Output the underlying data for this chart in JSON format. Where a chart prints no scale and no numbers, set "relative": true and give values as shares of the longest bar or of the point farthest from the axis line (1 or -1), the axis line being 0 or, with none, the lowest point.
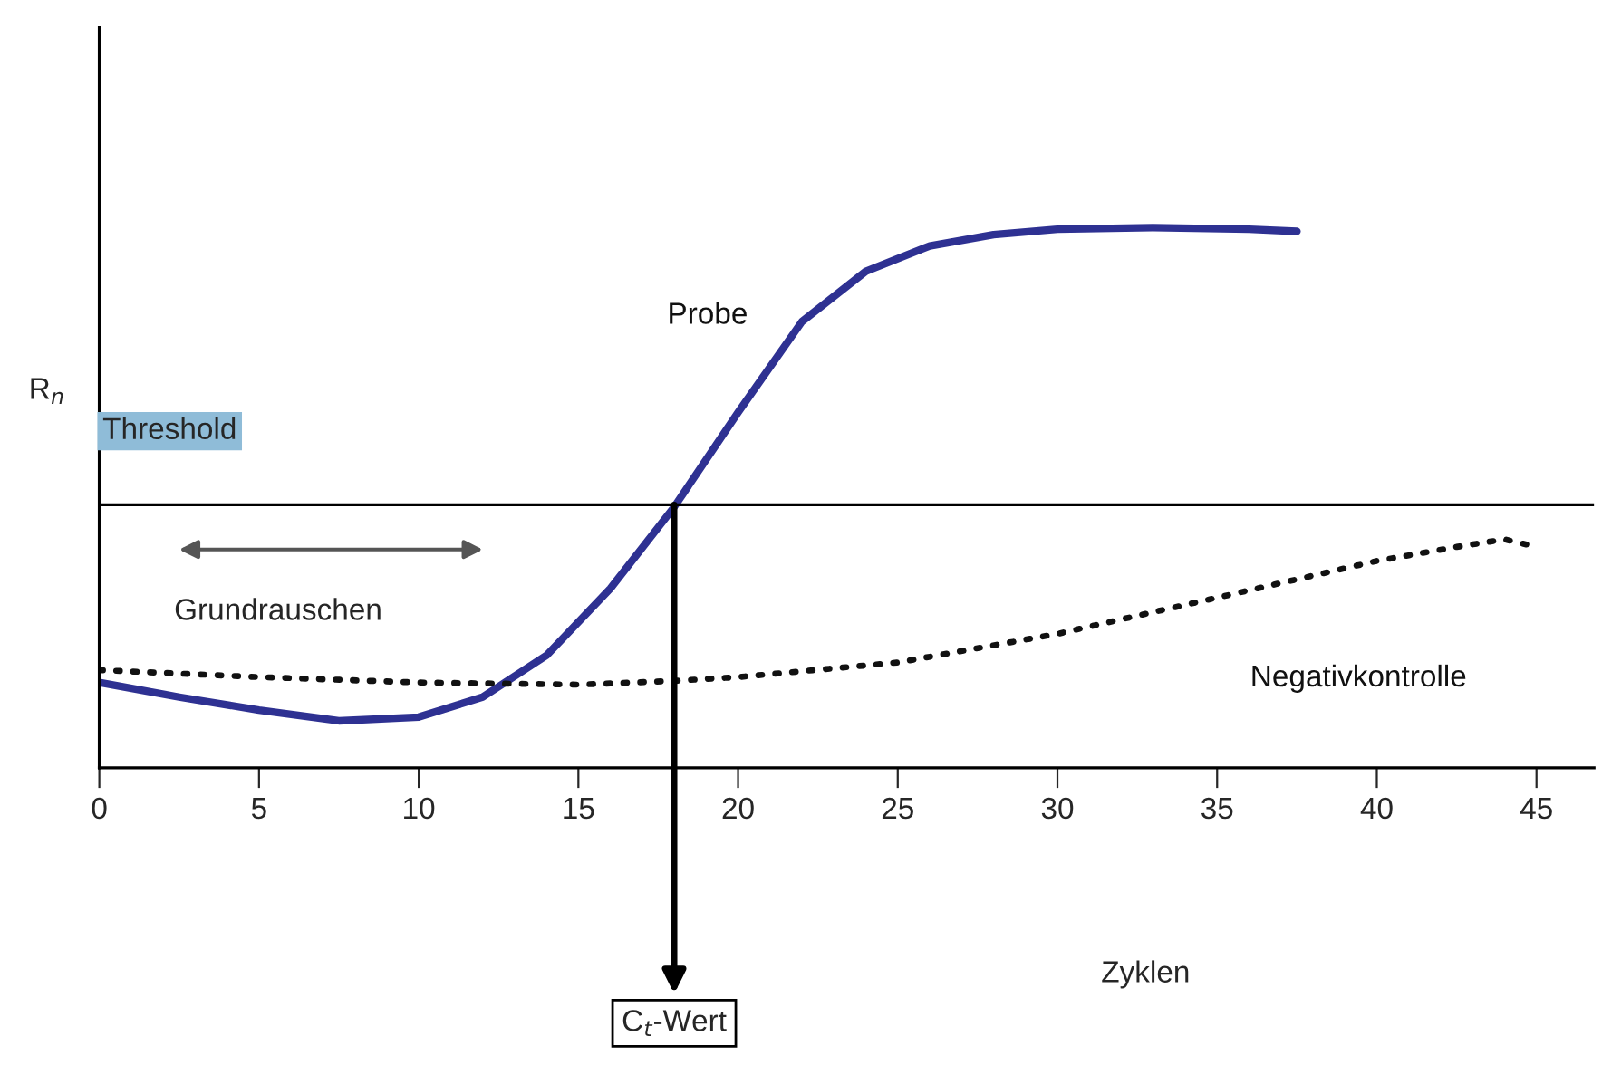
{
  "chart_data": {
    "type": "line",
    "relative": true,
    "xlabel": "Zyklen",
    "ylabel": "R$_{n}$",
    "xlim": [
      0,
      46.8
    ],
    "xticks": [
      0,
      5,
      10,
      15,
      20,
      25,
      30,
      35,
      40,
      45
    ],
    "tick_labels": "x",
    "grid": false,
    "legend": false,
    "marker": "none",
    "series": [
      {
        "name": "Probe",
        "color": "#2e3192",
        "line_style": "solid",
        "x": [
          0,
          2.5,
          5,
          7.5,
          10,
          12,
          14,
          16,
          18,
          20,
          22,
          24,
          26,
          28,
          30,
          33,
          36,
          37.5
        ],
        "values": [
          0.158,
          0.131,
          0.107,
          0.087,
          0.094,
          0.131,
          0.208,
          0.332,
          0.483,
          0.658,
          0.826,
          0.919,
          0.966,
          0.987,
          0.997,
          1.0,
          0.997,
          0.993
        ]
      },
      {
        "name": "Negativkontrolle",
        "color": "#111111",
        "line_style": "dotted",
        "x": [
          0,
          5,
          10,
          15,
          18,
          20,
          25,
          30,
          35,
          40,
          42.5,
          44,
          45
        ],
        "values": [
          0.181,
          0.168,
          0.158,
          0.154,
          0.161,
          0.168,
          0.195,
          0.248,
          0.315,
          0.383,
          0.409,
          0.423,
          0.409
        ]
      }
    ],
    "ref_lines": [
      {
        "axis": "y",
        "value": 0.487,
        "label": "Threshold",
        "color": "#000000",
        "line_style": "solid"
      }
    ],
    "annotations": [
      "Grundrauschen",
      {
        "text": "C$_{t}$-Wert",
        "x": 18,
        "y": 0.487
      }
    ]
  }
}
